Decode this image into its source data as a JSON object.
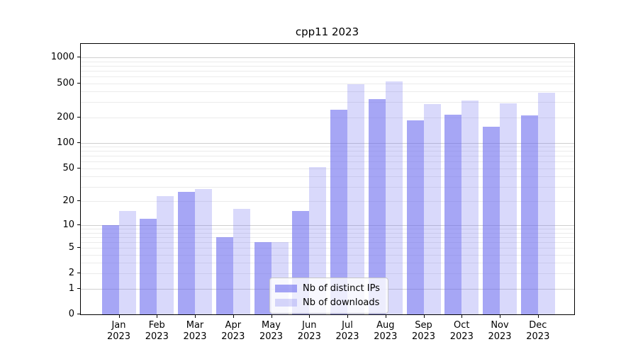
{
  "title": "cpp11 2023",
  "chart_data": {
    "type": "bar",
    "title": "cpp11 2023",
    "xlabel": "",
    "ylabel": "",
    "scale": "log1p",
    "grid": true,
    "legend_position": "lower center",
    "yticks": [
      0,
      1,
      2,
      5,
      10,
      20,
      50,
      100,
      200,
      500,
      1000
    ],
    "ylim": [
      0,
      1450
    ],
    "categories": [
      {
        "month": "Jan",
        "year": "2023"
      },
      {
        "month": "Feb",
        "year": "2023"
      },
      {
        "month": "Mar",
        "year": "2023"
      },
      {
        "month": "Apr",
        "year": "2023"
      },
      {
        "month": "May",
        "year": "2023"
      },
      {
        "month": "Jun",
        "year": "2023"
      },
      {
        "month": "Jul",
        "year": "2023"
      },
      {
        "month": "Aug",
        "year": "2023"
      },
      {
        "month": "Sep",
        "year": "2023"
      },
      {
        "month": "Oct",
        "year": "2023"
      },
      {
        "month": "Nov",
        "year": "2023"
      },
      {
        "month": "Dec",
        "year": "2023"
      }
    ],
    "series": [
      {
        "name": "Nb of distinct IPs",
        "key": "distinct-ips",
        "color": "rgba(102, 102, 238, 0.58)",
        "values": [
          10,
          12,
          26,
          7,
          6,
          15,
          245,
          325,
          185,
          215,
          155,
          210
        ]
      },
      {
        "name": "Nb of downloads",
        "key": "downloads",
        "color": "rgba(102, 102, 238, 0.25)",
        "values": [
          15,
          23,
          28,
          16,
          6,
          52,
          490,
          525,
          285,
          315,
          290,
          390
        ]
      }
    ]
  },
  "colors": {
    "background": "#ffffff",
    "axis": "#000000",
    "grid_minor": "#ebebeb",
    "grid_major": "#cfcfcf",
    "bar_dark": "rgba(102, 102, 238, 0.58)",
    "bar_light": "rgba(102, 102, 238, 0.25)"
  }
}
